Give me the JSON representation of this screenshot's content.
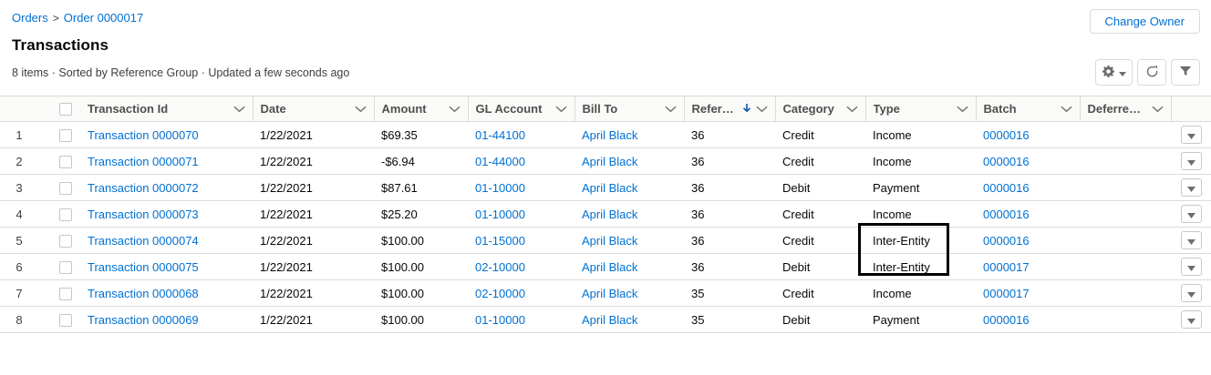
{
  "breadcrumb": {
    "parent": "Orders",
    "separator": ">",
    "current": "Order 0000017"
  },
  "page": {
    "title": "Transactions",
    "status": "8 items · Sorted by Reference Group · Updated a few seconds ago"
  },
  "actions": {
    "change_owner_label": "Change Owner"
  },
  "controls": {
    "settings_icon": "gear-icon",
    "refresh_icon": "refresh-icon",
    "filter_icon": "filter-icon"
  },
  "table": {
    "columns": [
      {
        "label": "Transaction Id",
        "name": "transaction-id",
        "sorted": false
      },
      {
        "label": "Date",
        "name": "date",
        "sorted": false
      },
      {
        "label": "Amount",
        "name": "amount",
        "sorted": false
      },
      {
        "label": "GL Account",
        "name": "gl-account",
        "sorted": false
      },
      {
        "label": "Bill To",
        "name": "bill-to",
        "sorted": false
      },
      {
        "label": "Refere…",
        "name": "reference",
        "sorted": true
      },
      {
        "label": "Category",
        "name": "category",
        "sorted": false
      },
      {
        "label": "Type",
        "name": "type",
        "sorted": false
      },
      {
        "label": "Batch",
        "name": "batch",
        "sorted": false
      },
      {
        "label": "Deferre…",
        "name": "deferred",
        "sorted": false
      }
    ],
    "rows": [
      {
        "num": "1",
        "id": "Transaction 0000070",
        "date": "1/22/2021",
        "amount": "$69.35",
        "gl_account": "01-44100",
        "bill_to": "April Black",
        "reference": "36",
        "category": "Credit",
        "type": "Income",
        "batch": "0000016",
        "deferred": ""
      },
      {
        "num": "2",
        "id": "Transaction 0000071",
        "date": "1/22/2021",
        "amount": "-$6.94",
        "gl_account": "01-44000",
        "bill_to": "April Black",
        "reference": "36",
        "category": "Credit",
        "type": "Income",
        "batch": "0000016",
        "deferred": ""
      },
      {
        "num": "3",
        "id": "Transaction 0000072",
        "date": "1/22/2021",
        "amount": "$87.61",
        "gl_account": "01-10000",
        "bill_to": "April Black",
        "reference": "36",
        "category": "Debit",
        "type": "Payment",
        "batch": "0000016",
        "deferred": ""
      },
      {
        "num": "4",
        "id": "Transaction 0000073",
        "date": "1/22/2021",
        "amount": "$25.20",
        "gl_account": "01-10000",
        "bill_to": "April Black",
        "reference": "36",
        "category": "Credit",
        "type": "Income",
        "batch": "0000016",
        "deferred": ""
      },
      {
        "num": "5",
        "id": "Transaction 0000074",
        "date": "1/22/2021",
        "amount": "$100.00",
        "gl_account": "01-15000",
        "bill_to": "April Black",
        "reference": "36",
        "category": "Credit",
        "type": "Inter-Entity",
        "batch": "0000016",
        "deferred": ""
      },
      {
        "num": "6",
        "id": "Transaction 0000075",
        "date": "1/22/2021",
        "amount": "$100.00",
        "gl_account": "02-10000",
        "bill_to": "April Black",
        "reference": "36",
        "category": "Debit",
        "type": "Inter-Entity",
        "batch": "0000017",
        "deferred": ""
      },
      {
        "num": "7",
        "id": "Transaction 0000068",
        "date": "1/22/2021",
        "amount": "$100.00",
        "gl_account": "02-10000",
        "bill_to": "April Black",
        "reference": "35",
        "category": "Credit",
        "type": "Income",
        "batch": "0000017",
        "deferred": ""
      },
      {
        "num": "8",
        "id": "Transaction 0000069",
        "date": "1/22/2021",
        "amount": "$100.00",
        "gl_account": "01-10000",
        "bill_to": "April Black",
        "reference": "35",
        "category": "Debit",
        "type": "Payment",
        "batch": "0000016",
        "deferred": ""
      }
    ]
  },
  "annotation": {
    "highlighted_column": "Type",
    "highlighted_rows": "5-6",
    "highlighted_values": [
      "Inter-Entity",
      "Inter-Entity"
    ]
  },
  "colors": {
    "link": "#0070d2",
    "text": "#080707",
    "muted_text": "#3e3e3c",
    "header_text": "#514f4d",
    "border": "#dddbda",
    "header_bg": "#fafaf9",
    "icon": "#706e6b",
    "sort_arrow": "#0b5cab",
    "annotation_border": "#000000"
  }
}
